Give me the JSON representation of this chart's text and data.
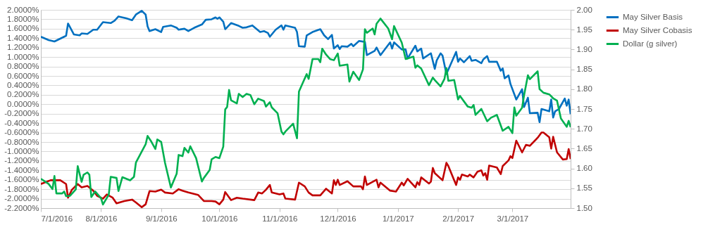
{
  "chart_data": {
    "type": "line",
    "legend": "right",
    "grid": "y",
    "line_style": "solid",
    "xlim": [
      "2016-07-01",
      "2017-03-31"
    ],
    "xticks": [
      {
        "value": "2016-07-01",
        "label": "7/1/2016"
      },
      {
        "value": "2016-08-01",
        "label": "8/1/2016"
      },
      {
        "value": "2016-09-01",
        "label": "9/1/2016"
      },
      {
        "value": "2016-10-01",
        "label": "10/1/2016"
      },
      {
        "value": "2016-11-01",
        "label": "11/1/2016"
      },
      {
        "value": "2016-12-01",
        "label": "12/1/2016"
      },
      {
        "value": "2017-01-01",
        "label": "1/1/2017"
      },
      {
        "value": "2017-02-01",
        "label": "2/1/2017"
      },
      {
        "value": "2017-03-01",
        "label": "3/1/2017"
      }
    ],
    "ylim": [
      -2.2,
      2.0
    ],
    "yticks": [
      {
        "value": -2.2,
        "label": "-2.2000%"
      },
      {
        "value": -2.0,
        "label": "-2.0000%"
      },
      {
        "value": -1.8,
        "label": "-1.8000%"
      },
      {
        "value": -1.6,
        "label": "-1.6000%"
      },
      {
        "value": -1.4,
        "label": "-1.4000%"
      },
      {
        "value": -1.2,
        "label": "-1.2000%"
      },
      {
        "value": -1.0,
        "label": "-1.0000%"
      },
      {
        "value": -0.8,
        "label": "-0.8000%"
      },
      {
        "value": -0.6,
        "label": "-0.6000%"
      },
      {
        "value": -0.4,
        "label": "-0.4000%"
      },
      {
        "value": -0.2,
        "label": "-0.2000%"
      },
      {
        "value": 0.0,
        "label": "0.0000%"
      },
      {
        "value": 0.2,
        "label": "0.2000%"
      },
      {
        "value": 0.4,
        "label": "0.4000%"
      },
      {
        "value": 0.6,
        "label": "0.6000%"
      },
      {
        "value": 0.8,
        "label": "0.8000%"
      },
      {
        "value": 1.0,
        "label": "1.0000%"
      },
      {
        "value": 1.2,
        "label": "1.2000%"
      },
      {
        "value": 1.4,
        "label": "1.4000%"
      },
      {
        "value": 1.6,
        "label": "1.6000%"
      },
      {
        "value": 1.8,
        "label": "1.8000%"
      },
      {
        "value": 2.0,
        "label": "2.0000%"
      }
    ],
    "y2lim": [
      1.5,
      2.0
    ],
    "y2ticks": [
      {
        "value": 1.5,
        "label": "1.50"
      },
      {
        "value": 1.55,
        "label": "1.55"
      },
      {
        "value": 1.6,
        "label": "1.60"
      },
      {
        "value": 1.65,
        "label": "1.65"
      },
      {
        "value": 1.7,
        "label": "1.70"
      },
      {
        "value": 1.75,
        "label": "1.75"
      },
      {
        "value": 1.8,
        "label": "1.80"
      },
      {
        "value": 1.85,
        "label": "1.85"
      },
      {
        "value": 1.9,
        "label": "1.90"
      },
      {
        "value": 1.95,
        "label": "1.95"
      },
      {
        "value": 2.0,
        "label": "2.00"
      }
    ],
    "series": [
      {
        "name": "May Silver Basis",
        "color": "#0070c0",
        "axis": "y",
        "x": [
          "2016-07-01",
          "2016-07-05",
          "2016-07-08",
          "2016-07-13",
          "2016-07-14",
          "2016-07-15",
          "2016-07-18",
          "2016-07-21",
          "2016-07-22",
          "2016-07-25",
          "2016-07-28",
          "2016-07-30",
          "2016-08-02",
          "2016-08-06",
          "2016-08-08",
          "2016-08-10",
          "2016-08-12",
          "2016-08-14",
          "2016-08-17",
          "2016-08-19",
          "2016-08-22",
          "2016-08-24",
          "2016-08-25",
          "2016-08-26",
          "2016-08-29",
          "2016-09-01",
          "2016-09-02",
          "2016-09-06",
          "2016-09-09",
          "2016-09-10",
          "2016-09-13",
          "2016-09-15",
          "2016-09-18",
          "2016-09-22",
          "2016-09-24",
          "2016-09-27",
          "2016-09-29",
          "2016-09-30",
          "2016-10-01",
          "2016-10-03",
          "2016-10-04",
          "2016-10-07",
          "2016-10-11",
          "2016-10-13",
          "2016-10-15",
          "2016-10-18",
          "2016-10-22",
          "2016-10-24",
          "2016-10-26",
          "2016-10-27",
          "2016-10-30",
          "2016-11-02",
          "2016-11-03",
          "2016-11-04",
          "2016-11-09",
          "2016-11-10",
          "2016-11-11",
          "2016-11-14",
          "2016-11-15",
          "2016-11-18",
          "2016-11-22",
          "2016-11-24",
          "2016-11-26",
          "2016-11-28",
          "2016-11-29",
          "2016-12-01",
          "2016-12-02",
          "2016-12-03",
          "2016-12-06",
          "2016-12-08",
          "2016-12-09",
          "2016-12-12",
          "2016-12-15",
          "2016-12-16",
          "2016-12-20",
          "2016-12-21",
          "2016-12-23",
          "2016-12-28",
          "2016-12-29",
          "2016-12-30",
          "2017-01-03",
          "2017-01-05",
          "2017-01-06",
          "2017-01-10",
          "2017-01-11",
          "2017-01-13",
          "2017-01-14",
          "2017-01-18",
          "2017-01-20",
          "2017-01-21",
          "2017-01-23",
          "2017-01-24",
          "2017-01-26",
          "2017-01-31",
          "2017-02-01",
          "2017-02-02",
          "2017-02-04",
          "2017-02-07",
          "2017-02-08",
          "2017-02-10",
          "2017-02-13",
          "2017-02-14",
          "2017-02-16",
          "2017-02-17",
          "2017-02-21",
          "2017-02-23",
          "2017-02-24",
          "2017-02-25",
          "2017-02-27",
          "2017-02-28",
          "2017-03-03",
          "2017-03-06",
          "2017-03-07",
          "2017-03-09",
          "2017-03-10",
          "2017-03-14",
          "2017-03-15",
          "2017-03-16",
          "2017-03-20",
          "2017-03-21",
          "2017-03-22",
          "2017-03-23",
          "2017-03-25",
          "2017-03-28",
          "2017-03-29",
          "2017-03-30",
          "2017-03-31"
        ],
        "values": [
          1.43,
          1.36,
          1.33,
          1.43,
          1.45,
          1.71,
          1.48,
          1.46,
          1.5,
          1.49,
          1.58,
          1.58,
          1.74,
          1.72,
          1.77,
          1.86,
          1.84,
          1.82,
          1.78,
          1.9,
          1.98,
          1.9,
          1.65,
          1.55,
          1.59,
          1.53,
          1.64,
          1.67,
          1.62,
          1.58,
          1.6,
          1.55,
          1.62,
          1.69,
          1.79,
          1.8,
          1.84,
          1.81,
          1.84,
          1.75,
          1.59,
          1.72,
          1.66,
          1.62,
          1.63,
          1.67,
          1.53,
          1.55,
          1.51,
          1.43,
          1.58,
          1.67,
          1.58,
          1.67,
          1.62,
          1.53,
          1.23,
          1.22,
          1.46,
          1.53,
          1.59,
          1.46,
          1.38,
          1.47,
          1.18,
          1.25,
          1.17,
          1.23,
          1.22,
          1.28,
          1.23,
          1.34,
          1.32,
          1.04,
          1.13,
          1.2,
          1.04,
          1.31,
          1.18,
          1.31,
          1.16,
          1.16,
          0.97,
          1.24,
          1.12,
          1.18,
          0.97,
          1.08,
          0.75,
          0.93,
          1.08,
          1.03,
          0.64,
          1.11,
          0.9,
          0.97,
          0.89,
          1.02,
          0.92,
          0.94,
          0.87,
          0.95,
          1.02,
          0.9,
          0.9,
          0.71,
          0.76,
          0.55,
          0.61,
          0.43,
          0.1,
          0.32,
          -0.06,
          0.14,
          -0.19,
          -0.18,
          -0.38,
          -0.1,
          -0.15,
          0.1,
          -0.28,
          -0.15,
          -0.1,
          0.12,
          -0.03,
          0.1,
          -0.21
        ]
      },
      {
        "name": "May Silver Cobasis",
        "color": "#c00000",
        "axis": "y",
        "x": [
          "2016-07-01",
          "2016-07-06",
          "2016-07-11",
          "2016-07-14",
          "2016-07-15",
          "2016-07-17",
          "2016-07-20",
          "2016-07-22",
          "2016-07-25",
          "2016-07-28",
          "2016-07-30",
          "2016-08-02",
          "2016-08-04",
          "2016-08-07",
          "2016-08-09",
          "2016-08-13",
          "2016-08-17",
          "2016-08-19",
          "2016-08-22",
          "2016-08-24",
          "2016-08-26",
          "2016-08-29",
          "2016-09-01",
          "2016-09-03",
          "2016-09-07",
          "2016-09-10",
          "2016-09-12",
          "2016-09-15",
          "2016-09-20",
          "2016-09-23",
          "2016-09-27",
          "2016-09-29",
          "2016-10-01",
          "2016-10-03",
          "2016-10-04",
          "2016-10-07",
          "2016-10-10",
          "2016-10-13",
          "2016-10-19",
          "2016-10-21",
          "2016-10-23",
          "2016-10-25",
          "2016-10-27",
          "2016-10-28",
          "2016-11-01",
          "2016-11-03",
          "2016-11-04",
          "2016-11-09",
          "2016-11-11",
          "2016-11-14",
          "2016-11-16",
          "2016-11-18",
          "2016-11-22",
          "2016-11-25",
          "2016-11-28",
          "2016-11-29",
          "2016-11-30",
          "2016-12-01",
          "2016-12-02",
          "2016-12-06",
          "2016-12-09",
          "2016-12-13",
          "2016-12-14",
          "2016-12-15",
          "2016-12-16",
          "2016-12-21",
          "2016-12-22",
          "2016-12-23",
          "2016-12-28",
          "2016-12-31",
          "2017-01-03",
          "2017-01-04",
          "2017-01-06",
          "2017-01-10",
          "2017-01-11",
          "2017-01-12",
          "2017-01-13",
          "2017-01-17",
          "2017-01-18",
          "2017-01-19",
          "2017-01-20",
          "2017-01-24",
          "2017-01-26",
          "2017-01-27",
          "2017-01-31",
          "2017-02-01",
          "2017-02-02",
          "2017-02-03",
          "2017-02-06",
          "2017-02-07",
          "2017-02-09",
          "2017-02-11",
          "2017-02-13",
          "2017-02-14",
          "2017-02-15",
          "2017-02-16",
          "2017-02-17",
          "2017-02-21",
          "2017-02-23",
          "2017-02-24",
          "2017-02-27",
          "2017-02-28",
          "2017-03-01",
          "2017-03-03",
          "2017-03-06",
          "2017-03-08",
          "2017-03-10",
          "2017-03-14",
          "2017-03-16",
          "2017-03-17",
          "2017-03-20",
          "2017-03-21",
          "2017-03-22",
          "2017-03-24",
          "2017-03-27",
          "2017-03-29",
          "2017-03-30",
          "2017-03-31"
        ],
        "values": [
          -1.69,
          -1.61,
          -1.61,
          -1.69,
          -1.98,
          -1.81,
          -1.69,
          -1.76,
          -1.73,
          -1.83,
          -1.94,
          -2.0,
          -1.91,
          -1.98,
          -2.1,
          -2.05,
          -2.02,
          -2.08,
          -2.18,
          -2.12,
          -1.84,
          -1.85,
          -1.81,
          -1.87,
          -1.89,
          -1.8,
          -1.83,
          -1.87,
          -1.92,
          -2.05,
          -2.05,
          -2.06,
          -2.12,
          -2.02,
          -1.86,
          -2.03,
          -1.98,
          -2.0,
          -2.03,
          -1.87,
          -1.89,
          -1.81,
          -1.71,
          -1.87,
          -1.91,
          -1.89,
          -2.0,
          -2.02,
          -1.66,
          -1.74,
          -1.87,
          -1.93,
          -1.93,
          -1.79,
          -1.89,
          -1.61,
          -1.71,
          -1.6,
          -1.71,
          -1.63,
          -1.74,
          -1.74,
          -1.8,
          -1.53,
          -1.71,
          -1.6,
          -1.76,
          -1.66,
          -1.83,
          -1.85,
          -1.66,
          -1.72,
          -1.58,
          -1.76,
          -1.65,
          -1.71,
          -1.55,
          -1.68,
          -1.64,
          -1.35,
          -1.46,
          -1.61,
          -1.24,
          -1.31,
          -1.71,
          -1.55,
          -1.6,
          -1.49,
          -1.53,
          -1.49,
          -1.55,
          -1.43,
          -1.4,
          -1.51,
          -1.46,
          -1.6,
          -1.3,
          -1.34,
          -1.48,
          -1.31,
          -1.19,
          -1.1,
          -1.14,
          -0.77,
          -1.02,
          -0.86,
          -0.88,
          -0.71,
          -0.6,
          -0.6,
          -0.7,
          -0.94,
          -0.69,
          -1.02,
          -1.17,
          -1.16,
          -0.95,
          -1.16
        ]
      },
      {
        "name": "Dollar (g silver)",
        "color": "#00b050",
        "axis": "y2",
        "x": [
          "2016-07-01",
          "2016-07-05",
          "2016-07-07",
          "2016-07-08",
          "2016-07-09",
          "2016-07-12",
          "2016-07-13",
          "2016-07-14",
          "2016-07-16",
          "2016-07-19",
          "2016-07-20",
          "2016-07-22",
          "2016-07-23",
          "2016-07-25",
          "2016-07-26",
          "2016-07-27",
          "2016-07-29",
          "2016-08-01",
          "2016-08-02",
          "2016-08-05",
          "2016-08-06",
          "2016-08-09",
          "2016-08-10",
          "2016-08-12",
          "2016-08-16",
          "2016-08-18",
          "2016-08-19",
          "2016-08-24",
          "2016-08-25",
          "2016-08-27",
          "2016-08-29",
          "2016-08-30",
          "2016-09-01",
          "2016-09-03",
          "2016-09-06",
          "2016-09-09",
          "2016-09-10",
          "2016-09-12",
          "2016-09-13",
          "2016-09-15",
          "2016-09-16",
          "2016-09-19",
          "2016-09-22",
          "2016-09-23",
          "2016-09-26",
          "2016-09-27",
          "2016-09-29",
          "2016-10-01",
          "2016-10-03",
          "2016-10-04",
          "2016-10-05",
          "2016-10-06",
          "2016-10-07",
          "2016-10-10",
          "2016-10-11",
          "2016-10-13",
          "2016-10-15",
          "2016-10-17",
          "2016-10-19",
          "2016-10-21",
          "2016-10-24",
          "2016-10-25",
          "2016-10-27",
          "2016-10-28",
          "2016-10-31",
          "2016-11-02",
          "2016-11-03",
          "2016-11-04",
          "2016-11-08",
          "2016-11-10",
          "2016-11-11",
          "2016-11-13",
          "2016-11-15",
          "2016-11-16",
          "2016-11-18",
          "2016-11-21",
          "2016-11-22",
          "2016-11-23",
          "2016-11-25",
          "2016-11-27",
          "2016-11-29",
          "2016-12-01",
          "2016-12-02",
          "2016-12-06",
          "2016-12-07",
          "2016-12-09",
          "2016-12-12",
          "2016-12-14",
          "2016-12-15",
          "2016-12-16",
          "2016-12-19",
          "2016-12-20",
          "2016-12-21",
          "2016-12-23",
          "2016-12-27",
          "2016-12-29",
          "2016-12-30",
          "2017-01-03",
          "2017-01-05",
          "2017-01-09",
          "2017-01-10",
          "2017-01-11",
          "2017-01-13",
          "2017-01-17",
          "2017-01-19",
          "2017-01-20",
          "2017-01-23",
          "2017-01-25",
          "2017-01-26",
          "2017-01-27",
          "2017-01-30",
          "2017-02-01",
          "2017-02-02",
          "2017-02-06",
          "2017-02-08",
          "2017-02-09",
          "2017-02-10",
          "2017-02-13",
          "2017-02-16",
          "2017-02-18",
          "2017-02-21",
          "2017-02-24",
          "2017-02-27",
          "2017-03-01",
          "2017-03-02",
          "2017-03-03",
          "2017-03-06",
          "2017-03-07",
          "2017-03-09",
          "2017-03-10",
          "2017-03-14",
          "2017-03-15",
          "2017-03-17",
          "2017-03-20",
          "2017-03-22",
          "2017-03-24",
          "2017-03-26",
          "2017-03-29",
          "2017-03-30",
          "2017-03-31"
        ],
        "values": [
          1.574,
          1.561,
          1.548,
          1.581,
          1.537,
          1.537,
          1.542,
          1.53,
          1.531,
          1.547,
          1.606,
          1.566,
          1.584,
          1.59,
          1.584,
          1.528,
          1.542,
          1.525,
          1.509,
          1.534,
          1.579,
          1.576,
          1.543,
          1.578,
          1.57,
          1.579,
          1.615,
          1.661,
          1.682,
          1.667,
          1.649,
          1.673,
          1.667,
          1.614,
          1.552,
          1.587,
          1.634,
          1.631,
          1.652,
          1.64,
          1.656,
          1.626,
          1.567,
          1.576,
          1.596,
          1.623,
          1.629,
          1.626,
          1.655,
          1.749,
          1.755,
          1.798,
          1.772,
          1.764,
          1.788,
          1.78,
          1.788,
          1.785,
          1.762,
          1.776,
          1.77,
          1.756,
          1.767,
          1.754,
          1.739,
          1.693,
          1.686,
          1.693,
          1.713,
          1.676,
          1.794,
          1.816,
          1.838,
          1.826,
          1.876,
          1.876,
          1.868,
          1.902,
          1.887,
          1.876,
          1.873,
          1.89,
          1.859,
          1.862,
          1.819,
          1.844,
          1.823,
          1.85,
          1.951,
          1.942,
          1.953,
          1.938,
          1.965,
          1.978,
          1.953,
          1.926,
          1.959,
          1.917,
          1.876,
          1.882,
          1.854,
          1.86,
          1.852,
          1.81,
          1.829,
          1.823,
          1.807,
          1.826,
          1.853,
          1.821,
          1.823,
          1.774,
          1.783,
          1.756,
          1.753,
          1.76,
          1.735,
          1.75,
          1.719,
          1.728,
          1.735,
          1.695,
          1.705,
          1.689,
          1.754,
          1.733,
          1.753,
          1.784,
          1.835,
          1.825,
          1.845,
          1.8,
          1.791,
          1.787,
          1.777,
          1.771,
          1.726,
          1.705,
          1.72,
          1.704
        ]
      }
    ]
  }
}
